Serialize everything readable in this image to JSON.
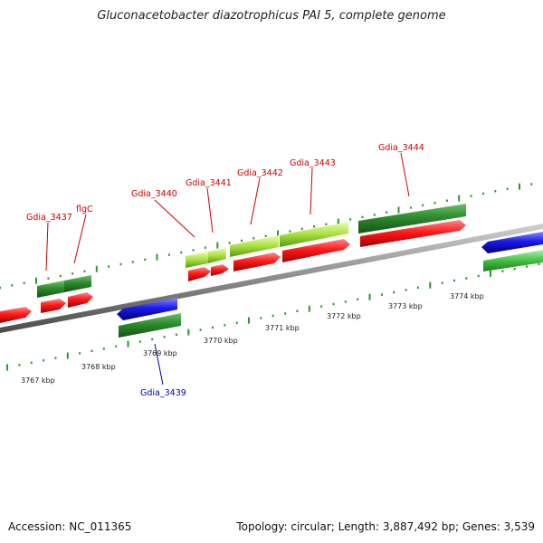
{
  "title": "Gluconacetobacter diazotrophicus PAI 5, complete genome",
  "footer": {
    "accession": "Accession: NC_011365",
    "stats": "Topology: circular; Length: 3,887,492 bp; Genes: 3,539"
  },
  "ruler": {
    "labels": [
      "3767 kbp",
      "3768 kbp",
      "3769 kbp",
      "3770 kbp",
      "3771 kbp",
      "3772 kbp",
      "3773 kbp",
      "3774 kbp"
    ]
  },
  "gene_labels": [
    {
      "name": "Gdia_3437",
      "color": "#cc0000"
    },
    {
      "name": "flgC",
      "color": "#cc0000"
    },
    {
      "name": "Gdia_3440",
      "color": "#cc0000"
    },
    {
      "name": "Gdia_3441",
      "color": "#cc0000"
    },
    {
      "name": "Gdia_3442",
      "color": "#cc0000"
    },
    {
      "name": "Gdia_3443",
      "color": "#cc0000"
    },
    {
      "name": "Gdia_3444",
      "color": "#cc0000"
    },
    {
      "name": "Gdia_3439",
      "color": "#0000aa"
    }
  ],
  "colors": {
    "cds": "#ee1111",
    "cds_blue": "#1a1acc",
    "gene_dark_green": "#2e8b2e",
    "gene_light_green": "#9ad43a",
    "backbone": "#8c8c8c",
    "tick": "#2a9a2a"
  }
}
